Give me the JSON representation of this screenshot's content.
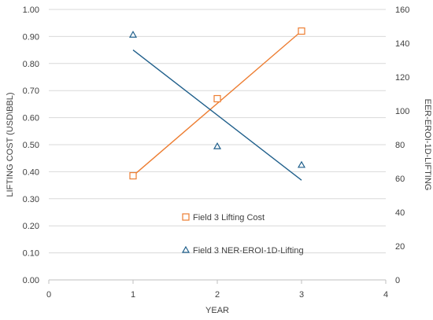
{
  "chart_data": {
    "type": "scatter",
    "xlabel": "YEAR",
    "ylabel_left": "LIFTING COST (USD\\BBL)",
    "ylabel_right": "EER-EROI-1D-LIFTING",
    "xlim": [
      0,
      4
    ],
    "ylim_left": [
      0,
      1
    ],
    "ylim_right": [
      0,
      160
    ],
    "x_ticks": [
      "0",
      "1",
      "2",
      "3",
      "4"
    ],
    "y_ticks_left": [
      "0.00",
      "0.10",
      "0.20",
      "0.30",
      "0.40",
      "0.50",
      "0.60",
      "0.70",
      "0.80",
      "0.90",
      "1.00"
    ],
    "y_ticks_right": [
      "0",
      "20",
      "40",
      "60",
      "80",
      "100",
      "120",
      "140",
      "160"
    ],
    "grid": "horizontal",
    "legend_position": "center-bottom",
    "series": [
      {
        "name": "Field 3 Lifting Cost",
        "axis": "left",
        "marker": "square",
        "color": "#ED7D31",
        "x": [
          1,
          2,
          3
        ],
        "y": [
          0.385,
          0.67,
          0.92
        ],
        "trendline": {
          "x": [
            1,
            3
          ],
          "y": [
            0.385,
            0.92
          ]
        }
      },
      {
        "name": "Field 3 NER-EROI-1D-Lifting",
        "axis": "right",
        "marker": "triangle",
        "color": "#1F5F8B",
        "x": [
          1,
          2,
          3
        ],
        "y": [
          145,
          79,
          68
        ],
        "trendline": {
          "x": [
            1,
            3
          ],
          "y": [
            136,
            59
          ]
        }
      }
    ]
  }
}
